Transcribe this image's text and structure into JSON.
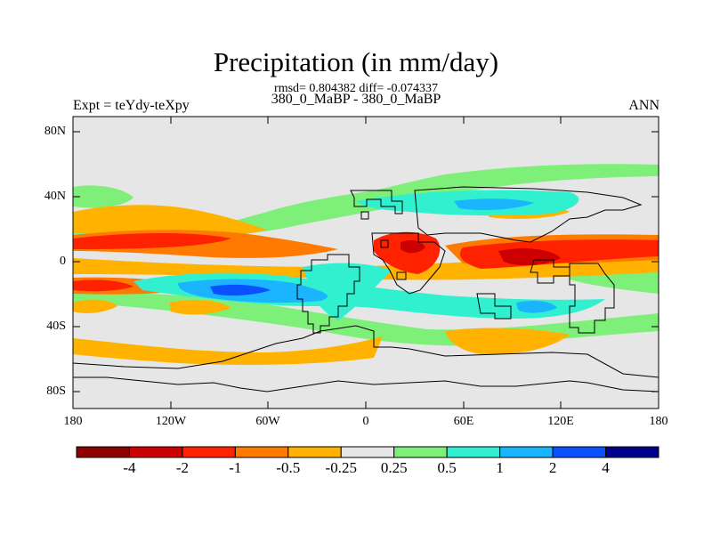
{
  "title": "Precipitation (in mm/day)",
  "stats": "rmsd= 0.804382 diff= -0.074337",
  "subtitle": "380_0_MaBP - 380_0_MaBP",
  "expt_label": "Expt = teYdy-teXpy",
  "season": "ANN",
  "lat_ticks": [
    "80N",
    "40N",
    "0",
    "40S",
    "80S"
  ],
  "lon_ticks": [
    "180",
    "120W",
    "60W",
    "0",
    "60E",
    "120E",
    "180"
  ],
  "colorbar": {
    "labels": [
      "-4",
      "-2",
      "-1",
      "-0.5",
      "-0.25",
      "0.25",
      "0.5",
      "1",
      "2",
      "4"
    ],
    "colors": [
      "#8b0000",
      "#cc0000",
      "#ff2200",
      "#ff7a00",
      "#ffb300",
      "#e6e6e6",
      "#7ef07a",
      "#30f0d0",
      "#1ab4ff",
      "#0a50ff",
      "#00008b"
    ]
  }
}
